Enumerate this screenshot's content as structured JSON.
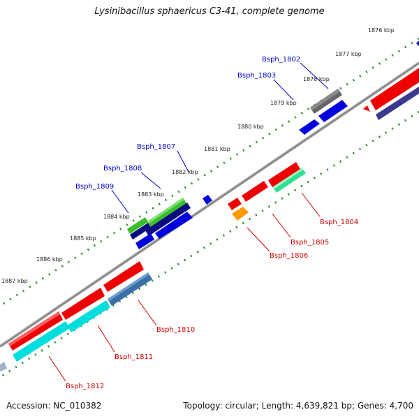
{
  "title": "Lysinibacillus sphaericus C3-41, complete genome",
  "footer": {
    "accession": "Accession: NC_010382",
    "summary": "Topology: circular; Length: 4,639,821 bp; Genes: 4,700"
  },
  "kbp_labels": [
    "1876 kbp",
    "1877 kbp",
    "1878 kbp",
    "1879 kbp",
    "1880 kbp",
    "1881 kbp",
    "1882 kbp",
    "1883 kbp",
    "1884 kbp",
    "1885 kbp",
    "1886 kbp",
    "1887 kbp"
  ],
  "gene_labels_top": [
    "Bsph_1802",
    "Bsph_1803",
    "Bsph_1807",
    "Bsph_1808",
    "Bsph_1809"
  ],
  "gene_labels_bottom": [
    "Bsph_1804",
    "Bsph_1805",
    "Bsph_1806",
    "Bsph_1810",
    "Bsph_1811",
    "Bsph_1812"
  ],
  "colors": {
    "top_label": "#0000cc",
    "bottom_label": "#cc0000",
    "backbone": "#8c8c8c",
    "tick": "#2e8b2e"
  }
}
